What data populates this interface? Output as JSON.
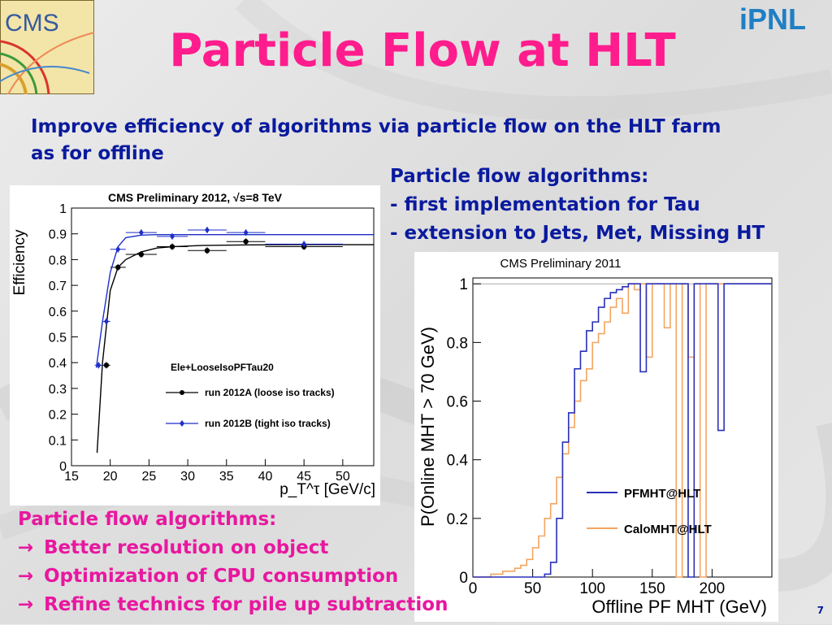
{
  "slide": {
    "title": "Particle Flow at HLT",
    "headline_lines": [
      "Improve efficiency of algorithms via particle flow on the HLT farm",
      "as for offline"
    ],
    "pf_list": [
      "Particle flow algorithms:",
      "- first implementation for Tau",
      "- extension to Jets, Met, Missing HT"
    ],
    "pink_list": {
      "heading": "Particle flow algorithms:",
      "arrow": "→",
      "items": [
        "Better resolution on object",
        "Optimization of CPU consumption",
        "Refine technics for pile up subtraction"
      ]
    },
    "page_number": "7",
    "logo_left": "CMS",
    "logo_right": "iPNL"
  },
  "chart_data": [
    {
      "type": "scatter",
      "title": "CMS Preliminary 2012, √s=8 TeV",
      "xlabel": "p_T^τ [GeV/c]",
      "ylabel": "Efficiency",
      "xlim": [
        15,
        54
      ],
      "ylim": [
        0,
        1
      ],
      "xticks": [
        15,
        20,
        25,
        30,
        35,
        40,
        45,
        50
      ],
      "yticks": [
        0,
        0.1,
        0.2,
        0.3,
        0.4,
        0.5,
        0.6,
        0.7,
        0.8,
        0.9,
        1
      ],
      "legend_title": "Ele+LooseIsoPFTau20",
      "series": [
        {
          "name": "run 2012A (loose iso tracks)",
          "color": "#000000",
          "x": [
            19.5,
            21,
            24,
            28,
            32.5,
            37.5,
            45
          ],
          "y": [
            0.39,
            0.77,
            0.82,
            0.85,
            0.835,
            0.87,
            0.85
          ],
          "xerr": [
            0.5,
            1,
            2,
            2,
            2.5,
            2.5,
            5
          ],
          "curve_x": [
            18.3,
            19,
            20,
            21,
            22,
            24,
            26,
            28,
            32,
            38,
            45,
            54
          ],
          "curve_y": [
            0.05,
            0.4,
            0.68,
            0.77,
            0.8,
            0.83,
            0.845,
            0.85,
            0.855,
            0.857,
            0.858,
            0.858
          ]
        },
        {
          "name": "run 2012B (tight iso tracks)",
          "color": "#1e2ec8",
          "x": [
            18.5,
            19.5,
            21,
            24,
            28,
            32.5,
            37.5,
            45
          ],
          "y": [
            0.39,
            0.56,
            0.84,
            0.905,
            0.89,
            0.915,
            0.905,
            0.86
          ],
          "xerr": [
            0.5,
            0.5,
            1,
            2,
            2,
            2.5,
            2.5,
            5
          ],
          "curve_x": [
            18.2,
            19,
            20,
            21,
            22,
            24,
            26,
            30,
            40,
            54
          ],
          "curve_y": [
            0.38,
            0.56,
            0.75,
            0.85,
            0.885,
            0.895,
            0.897,
            0.897,
            0.897,
            0.897
          ]
        }
      ]
    },
    {
      "type": "line",
      "title": "CMS Preliminary 2011",
      "xlabel": "Offline PF MHT (GeV)",
      "ylabel": "P(Online MHT > 70 GeV)",
      "xlim": [
        0,
        250
      ],
      "ylim": [
        0,
        1.02
      ],
      "xticks": [
        0,
        50,
        100,
        150,
        200
      ],
      "yticks": [
        0,
        0.2,
        0.4,
        0.6,
        0.8,
        1
      ],
      "series": [
        {
          "name": "PFMHT@HLT",
          "color": "#2a30b8",
          "x": [
            0,
            5,
            10,
            15,
            20,
            25,
            30,
            35,
            40,
            45,
            50,
            55,
            60,
            65,
            70,
            75,
            80,
            85,
            90,
            95,
            100,
            105,
            110,
            115,
            120,
            125,
            130,
            135,
            140,
            145,
            150,
            155,
            160,
            165,
            170,
            175,
            180,
            185,
            190,
            195,
            200,
            205,
            210,
            215,
            220,
            225,
            230,
            235,
            240,
            245,
            250
          ],
          "y": [
            0,
            0,
            0,
            0,
            0,
            0,
            0,
            0,
            0,
            0,
            0,
            0,
            0.01,
            0.05,
            0.2,
            0.46,
            0.56,
            0.71,
            0.77,
            0.84,
            0.87,
            0.92,
            0.95,
            0.97,
            0.98,
            0.99,
            1,
            1,
            0.7,
            1,
            1,
            1,
            1,
            1,
            1,
            1,
            0,
            1,
            1,
            1,
            1,
            0.5,
            1,
            1,
            1,
            1,
            1,
            1,
            1,
            1,
            1
          ]
        },
        {
          "name": "CaloMHT@HLT",
          "color": "#f5a560",
          "x": [
            0,
            5,
            10,
            15,
            20,
            25,
            30,
            35,
            40,
            45,
            50,
            55,
            60,
            65,
            70,
            75,
            80,
            85,
            90,
            95,
            100,
            105,
            110,
            115,
            120,
            125,
            130,
            135,
            140,
            145,
            150,
            155,
            160,
            165,
            170,
            175,
            180,
            185,
            190,
            195,
            200,
            205,
            210,
            215,
            220,
            225,
            230,
            235,
            240,
            245,
            250
          ],
          "y": [
            0,
            0,
            0,
            0.01,
            0.01,
            0.02,
            0.02,
            0.03,
            0.04,
            0.06,
            0.1,
            0.14,
            0.2,
            0.25,
            0.34,
            0.42,
            0.51,
            0.6,
            0.67,
            0.71,
            0.8,
            0.83,
            0.87,
            0.92,
            0.95,
            0.9,
            1,
            0.98,
            1,
            0.75,
            1,
            1,
            0.85,
            1,
            0,
            1,
            0.75,
            1,
            0,
            1,
            1,
            1,
            1,
            1,
            1,
            1,
            1,
            1,
            1,
            1,
            1
          ]
        }
      ]
    }
  ]
}
